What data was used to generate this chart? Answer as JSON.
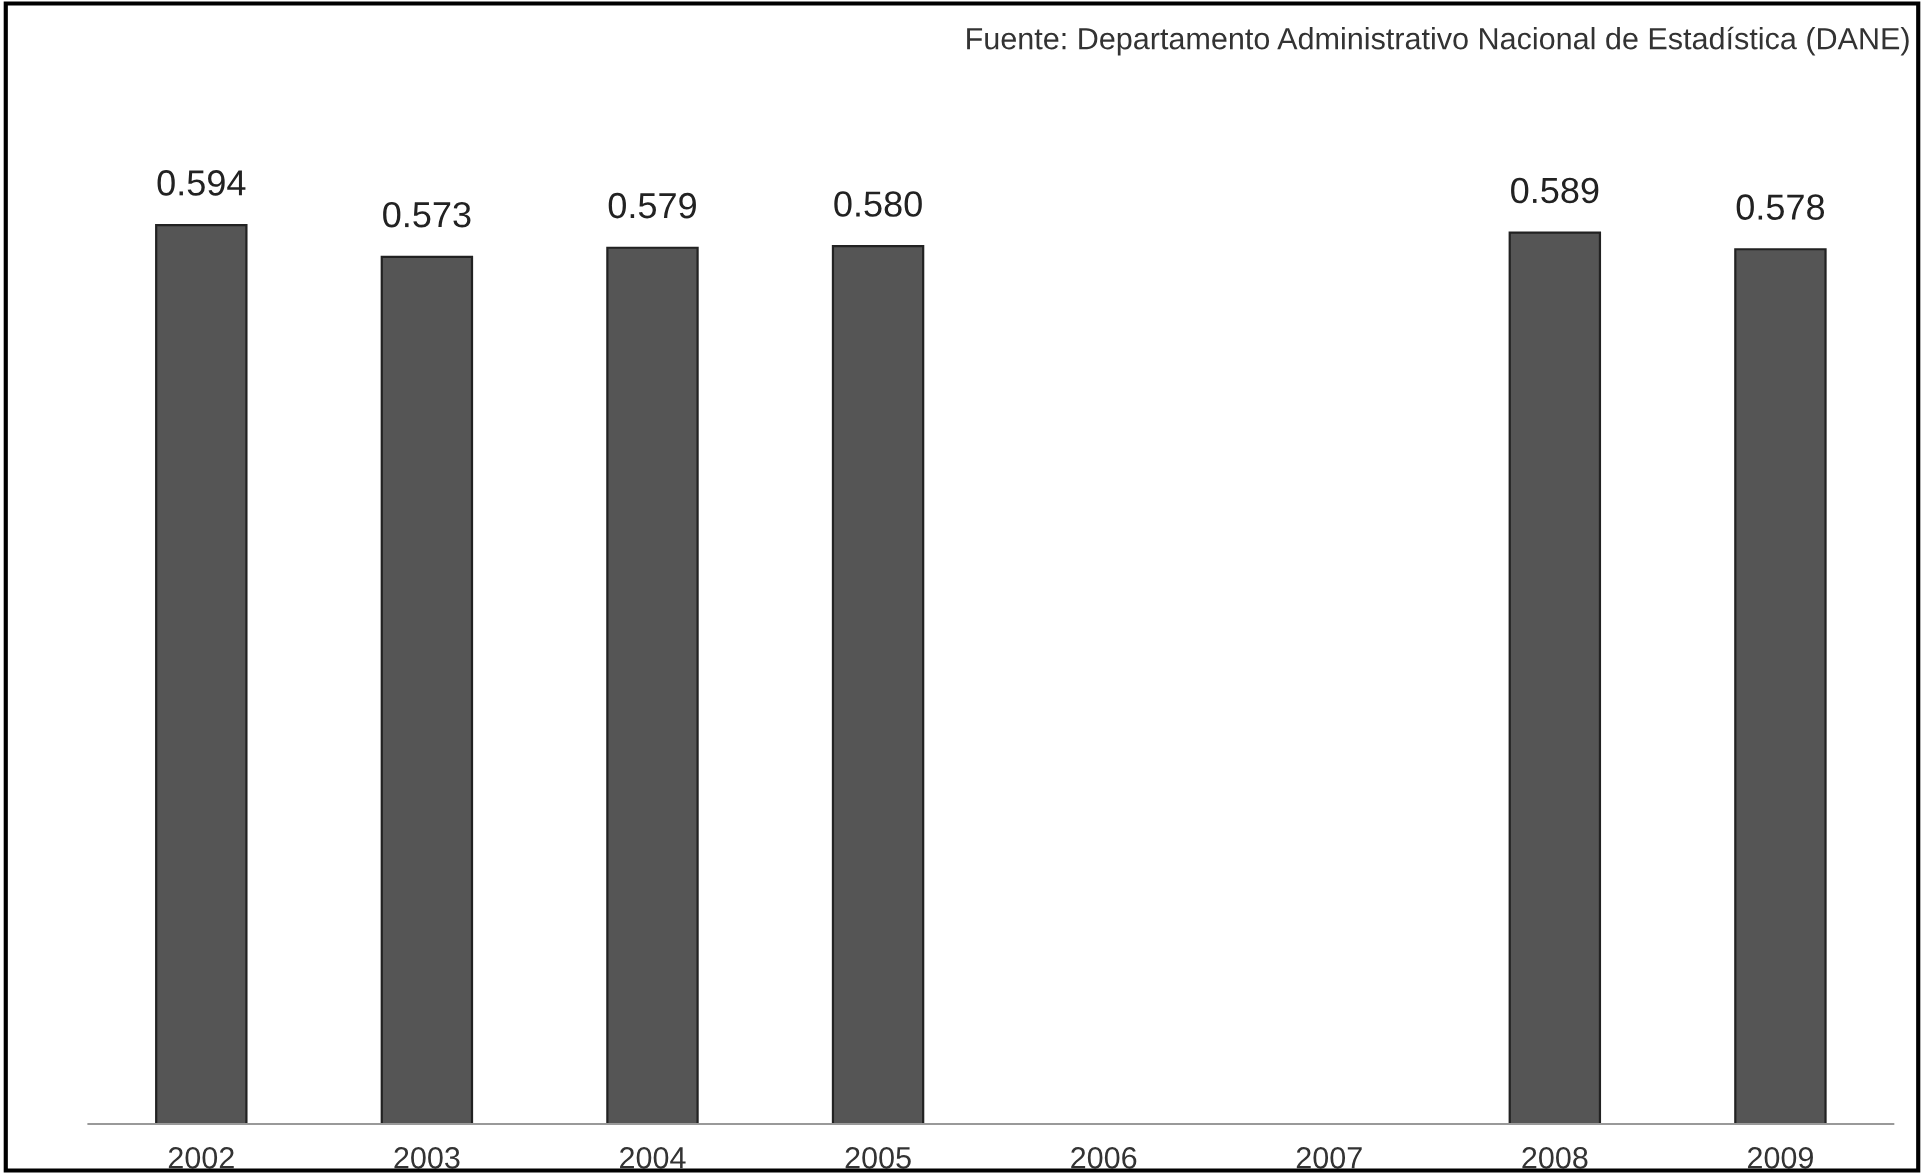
{
  "chart_data": {
    "type": "bar",
    "categories": [
      "2002",
      "2003",
      "2004",
      "2005",
      "2006",
      "2007",
      "2008",
      "2009"
    ],
    "values": [
      0.594,
      0.573,
      0.579,
      0.58,
      null,
      null,
      0.589,
      0.578
    ],
    "color": "#555555",
    "value_labels": [
      "0.594",
      "0.573",
      "0.579",
      "0.580",
      null,
      null,
      "0.589",
      "0.578"
    ],
    "tick_labels": "x",
    "grid": false,
    "annotations": [
      "Fuente: Departamento Administrativo Nacional de Estadística (DANE)"
    ]
  }
}
